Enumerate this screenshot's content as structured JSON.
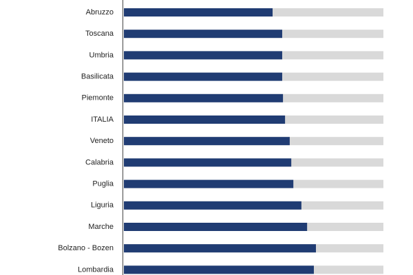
{
  "chart_data": {
    "type": "barh",
    "categories": [
      "Abruzzo",
      "Toscana",
      "Umbria",
      "Basilicata",
      "Piemonte",
      "ITALIA",
      "Veneto",
      "Calabria",
      "Puglia",
      "Liguria",
      "Marche",
      "Bolzano - Bozen",
      "Lombardia"
    ],
    "values": [
      57.3,
      61,
      61,
      61,
      61.3,
      62.1,
      63.9,
      64.5,
      65.3,
      68.4,
      70.6,
      74,
      73.2
    ],
    "color": "#203c73",
    "track_color": "#d9d9d9",
    "xlim": [
      0,
      100
    ]
  }
}
